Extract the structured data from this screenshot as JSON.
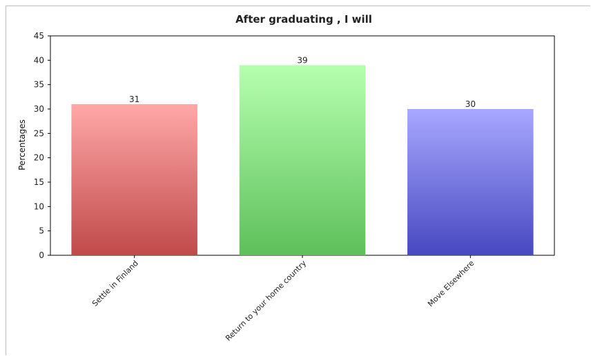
{
  "chart_data": {
    "type": "bar",
    "title": "After graduating , I will",
    "ylabel": "Percentages",
    "xlabel": "",
    "categories": [
      "Settle in Finland",
      "Return to your home country",
      "Move Elsewhere"
    ],
    "values": [
      31,
      39,
      30
    ],
    "ylim": [
      0,
      45
    ],
    "yticks": [
      0,
      5,
      10,
      15,
      20,
      25,
      30,
      35,
      40,
      45
    ],
    "grid": false,
    "legend": "none",
    "bar_colors": [
      {
        "top": "#ffa8a8",
        "bottom": "#c04a4a"
      },
      {
        "top": "#b6ffb0",
        "bottom": "#5ec05a"
      },
      {
        "top": "#a8a8ff",
        "bottom": "#4848c0"
      }
    ]
  }
}
